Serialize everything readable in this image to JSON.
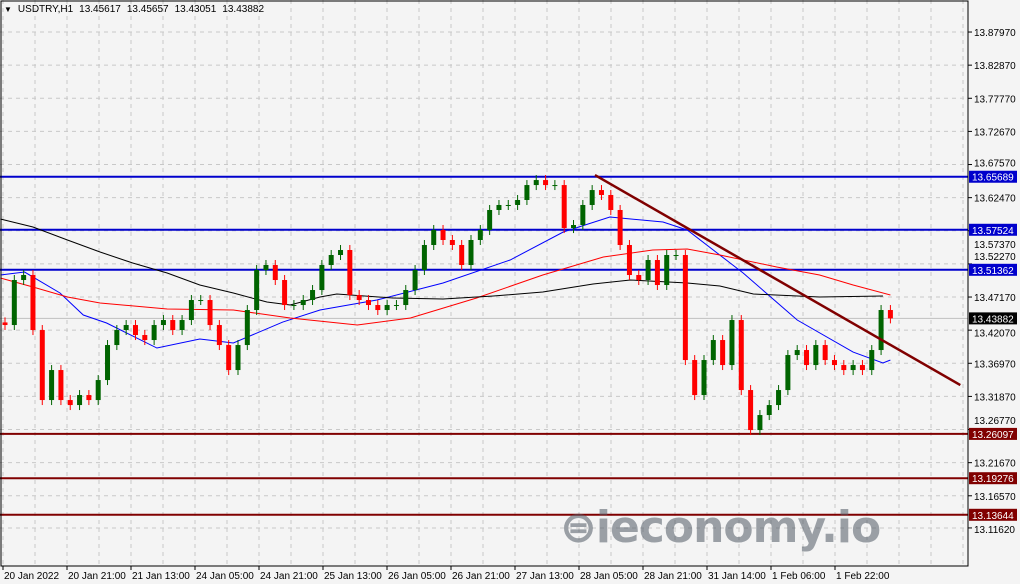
{
  "header": {
    "symbol": "USDTRY,H1",
    "open": "13.45617",
    "high": "13.45657",
    "low": "13.43051",
    "close": "13.43882"
  },
  "logo_text": "ieconomy.io",
  "colors": {
    "background": "#f4f4f4",
    "bull_candle": "#006400",
    "bear_candle": "#ff0000",
    "resistance": "#0000cc",
    "support": "#800000",
    "trendline": "#800000",
    "ma_fast": "#0000ff",
    "ma_medium": "#ff0000",
    "ma_slow": "#000000",
    "grid": "#c8c8c8"
  },
  "chart_data": {
    "type": "candlestick",
    "title": "USDTRY,H1",
    "ylim": [
      13.0576,
      13.929
    ],
    "grid": true,
    "y_ticks": [
      "13.87970",
      "13.82870",
      "13.77770",
      "13.72670",
      "13.67570",
      "13.62470",
      "13.57370",
      "13.52270",
      "13.47170",
      "13.42070",
      "13.36970",
      "13.31870",
      "13.26770",
      "13.21670",
      "13.16570",
      "13.11620"
    ],
    "x_ticks": [
      "20 Jan 2022",
      "20 Jan 21:00",
      "21 Jan 13:00",
      "24 Jan 05:00",
      "24 Jan 21:00",
      "25 Jan 13:00",
      "26 Jan 05:00",
      "26 Jan 21:00",
      "27 Jan 13:00",
      "28 Jan 05:00",
      "28 Jan 21:00",
      "31 Jan 14:00",
      "1 Feb 06:00",
      "1 Feb 22:00"
    ],
    "closes": [
      13.4286,
      13.4979,
      13.5056,
      13.4209,
      13.3131,
      13.3593,
      13.3131,
      13.3054,
      13.3208,
      13.3131,
      13.3439,
      13.3978,
      13.4209,
      13.4286,
      13.4132,
      13.4055,
      13.4286,
      13.4363,
      13.4209,
      13.4363,
      13.4671,
      13.4671,
      13.4286,
      13.3978,
      13.3593,
      13.3978,
      13.4517,
      13.5133,
      13.521,
      13.4979,
      13.4594,
      13.4594,
      13.4671,
      13.4825,
      13.521,
      13.5364,
      13.5441,
      13.4748,
      13.4671,
      13.4594,
      13.4517,
      13.4594,
      13.4594,
      13.4825,
      13.5133,
      13.5518,
      13.5749,
      13.5595,
      13.5518,
      13.521,
      13.5595,
      13.5749,
      13.6057,
      13.6134,
      13.6134,
      13.6211,
      13.6441,
      13.6518,
      13.6441,
      13.6441,
      13.5779,
      13.5826,
      13.6134,
      13.6364,
      13.6288,
      13.6057,
      13.5518,
      13.5056,
      13.4979,
      13.5287,
      13.4902,
      13.5364,
      13.5364,
      13.3747,
      13.3208,
      13.3747,
      13.4055,
      13.367,
      13.4363,
      13.3285,
      13.2669,
      13.29,
      13.3054,
      13.3285,
      13.3824,
      13.3901,
      13.367,
      13.3978,
      13.3747,
      13.367,
      13.3593,
      13.367,
      13.3593,
      13.3901,
      13.4517,
      13.43882
    ],
    "moving_averages": [
      {
        "color": "#0000ff",
        "points": [
          [
            -0.5,
            13.5056
          ],
          [
            2.1,
            13.5102
          ],
          [
            5.9,
            13.4779
          ],
          [
            8.4,
            13.444
          ],
          [
            10.9,
            13.4317
          ],
          [
            16.3,
            13.3932
          ],
          [
            20.9,
            13.4071
          ],
          [
            24.5,
            13.4009
          ],
          [
            29.8,
            13.4332
          ],
          [
            33.8,
            13.4517
          ],
          [
            39.9,
            13.4671
          ],
          [
            47.0,
            13.4933
          ],
          [
            54.2,
            13.5287
          ],
          [
            59.9,
            13.5718
          ],
          [
            64.9,
            13.5949
          ],
          [
            70.6,
            13.5872
          ],
          [
            73.2,
            13.5749
          ],
          [
            79.2,
            13.5087
          ],
          [
            85.0,
            13.4363
          ],
          [
            91.0,
            13.387
          ],
          [
            94.2,
            13.3701
          ],
          [
            95.0,
            13.3747
          ]
        ]
      },
      {
        "color": "#ff0000",
        "points": [
          [
            -0.5,
            13.501
          ],
          [
            3.0,
            13.4871
          ],
          [
            6.7,
            13.4717
          ],
          [
            10.2,
            13.4625
          ],
          [
            17.4,
            13.4532
          ],
          [
            24.5,
            13.4517
          ],
          [
            30.6,
            13.4394
          ],
          [
            37.8,
            13.4286
          ],
          [
            43.5,
            13.4394
          ],
          [
            50.6,
            13.4702
          ],
          [
            57.7,
            13.5056
          ],
          [
            64.2,
            13.5333
          ],
          [
            69.5,
            13.5441
          ],
          [
            73.2,
            13.5456
          ],
          [
            76.7,
            13.5364
          ],
          [
            82.8,
            13.5179
          ],
          [
            87.4,
            13.5056
          ],
          [
            91.0,
            13.4902
          ],
          [
            95.0,
            13.4748
          ]
        ]
      },
      {
        "color": "#000000",
        "points": [
          [
            -0.5,
            13.5918
          ],
          [
            3.0,
            13.5795
          ],
          [
            6.7,
            13.5595
          ],
          [
            10.2,
            13.541
          ],
          [
            13.7,
            13.5241
          ],
          [
            17.4,
            13.5087
          ],
          [
            20.9,
            13.4902
          ],
          [
            24.5,
            13.4779
          ],
          [
            28.1,
            13.464
          ],
          [
            30.6,
            13.4594
          ],
          [
            33.8,
            13.4717
          ],
          [
            35.6,
            13.4763
          ],
          [
            41.6,
            13.4702
          ],
          [
            47.0,
            13.4686
          ],
          [
            52.4,
            13.4733
          ],
          [
            57.7,
            13.4794
          ],
          [
            63.1,
            13.4917
          ],
          [
            67.1,
            13.4979
          ],
          [
            73.2,
            13.4933
          ],
          [
            76.7,
            13.4887
          ],
          [
            80.3,
            13.4763
          ],
          [
            87.4,
            13.4717
          ],
          [
            94.2,
            13.4733
          ]
        ]
      }
    ],
    "horizontal_levels": [
      {
        "value": 13.65689,
        "label": "13.65689",
        "kind": "resistance"
      },
      {
        "value": 13.57524,
        "label": "13.57524",
        "kind": "resistance"
      },
      {
        "value": 13.51362,
        "label": "13.51362",
        "kind": "resistance"
      },
      {
        "value": 13.26097,
        "label": "13.26097",
        "kind": "support"
      },
      {
        "value": 13.19276,
        "label": "13.19276",
        "kind": "support"
      },
      {
        "value": 13.13644,
        "label": "13.13644",
        "kind": "support"
      }
    ],
    "trendline": {
      "from": [
        63.3,
        13.6595
      ],
      "to": [
        102.5,
        13.3362
      ]
    },
    "last_price": {
      "value": 13.43882,
      "label": "13.43882"
    }
  }
}
